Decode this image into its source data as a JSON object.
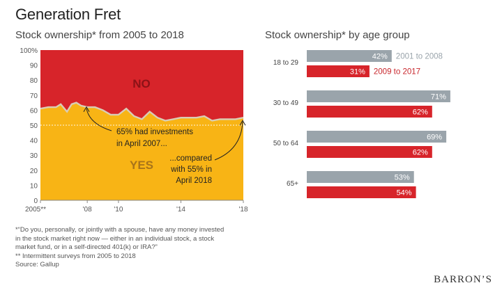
{
  "page": {
    "title": "Generation Fret",
    "brand": "BARRON’S",
    "footnotes": [
      "*“Do you, personally, or jointly with a spouse, have any money invested in the stock market right now — either in an individual stock, a stock market fund, or in a self-directed 401(k) or IRA?”",
      "** Intermittent surveys from 2005 to 2018",
      "Source: Gallup"
    ]
  },
  "colors": {
    "no": "#d7242a",
    "yes": "#f8b415",
    "gray_bar": "#9aa4ab",
    "red_bar": "#d7242a",
    "legend_gray": "#9aa4ab",
    "legend_red": "#c8262c"
  },
  "chart_data": [
    {
      "type": "area",
      "title": "Stock ownership* from 2005 to 2018",
      "x_ticks": [
        "2005**",
        "'08",
        "'10",
        "'14",
        "'18"
      ],
      "x_tick_values": [
        2005,
        2008,
        2010,
        2014,
        2018
      ],
      "y_ticks": [
        "100%",
        "90",
        "80",
        "70",
        "60",
        "50",
        "40",
        "30",
        "20",
        "10",
        "0"
      ],
      "y_tick_values": [
        100,
        90,
        80,
        70,
        60,
        50,
        40,
        30,
        20,
        10,
        0
      ],
      "xlim": [
        2005,
        2018
      ],
      "ylim": [
        0,
        100
      ],
      "series": [
        {
          "name": "YES",
          "x": [
            2005,
            2005.5,
            2006,
            2006.3,
            2006.7,
            2007.0,
            2007.3,
            2007.6,
            2008,
            2008.5,
            2009,
            2009.5,
            2010,
            2010.5,
            2011,
            2011.5,
            2012,
            2012.5,
            2013,
            2013.5,
            2014,
            2014.5,
            2015,
            2015.5,
            2016,
            2016.5,
            2017,
            2017.5,
            2018
          ],
          "values": [
            61,
            62,
            62,
            64,
            59,
            64,
            65,
            63,
            62,
            62,
            60,
            57,
            57,
            61,
            56,
            54,
            59,
            55,
            53,
            54,
            55,
            55,
            55,
            56,
            53,
            54,
            54,
            54,
            55
          ]
        },
        {
          "name": "NO",
          "x": [
            2005,
            2018
          ],
          "values": [
            100,
            100
          ]
        }
      ],
      "labels": {
        "no": "NO",
        "yes": "YES"
      },
      "annotations": [
        {
          "text_lines": [
            "65% had investments",
            "in April 2007..."
          ]
        },
        {
          "text_lines": [
            "...compared",
            "with 55% in",
            "April 2018"
          ]
        }
      ],
      "reference_line": 50,
      "grid": true
    },
    {
      "type": "bar",
      "orientation": "horizontal",
      "title": "Stock ownership* by age group",
      "categories": [
        "18 to 29",
        "30 to 49",
        "50 to 64",
        "65+"
      ],
      "series": [
        {
          "name": "2001 to 2008",
          "values": [
            42,
            71,
            69,
            53
          ]
        },
        {
          "name": "2009 to 2017",
          "values": [
            31,
            62,
            62,
            54
          ]
        }
      ],
      "xlim": [
        0,
        100
      ]
    }
  ]
}
